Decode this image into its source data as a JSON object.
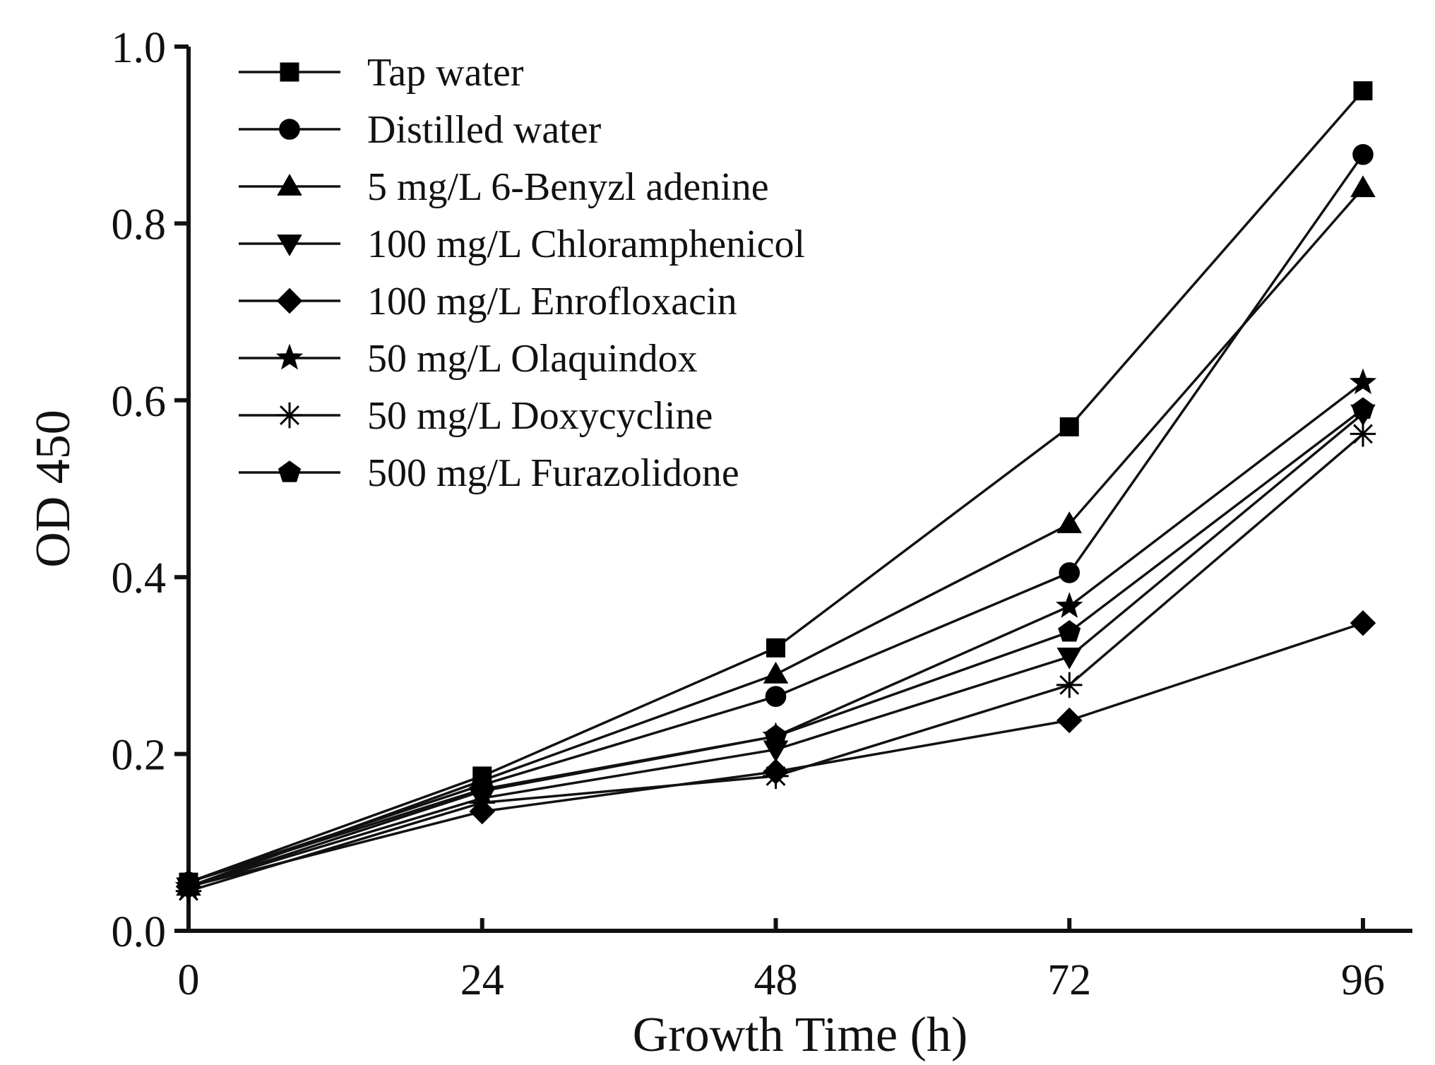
{
  "chart_data": {
    "type": "line",
    "title": "",
    "xlabel": "Growth Time (h)",
    "ylabel": "OD 450",
    "x": [
      0,
      24,
      48,
      72,
      96
    ],
    "xticks": [
      "0",
      "24",
      "48",
      "72",
      "96"
    ],
    "yticks": [
      "0.0",
      "0.2",
      "0.4",
      "0.6",
      "0.8",
      "1.0"
    ],
    "xlim": [
      0,
      100
    ],
    "ylim": [
      0,
      1.0
    ],
    "grid": false,
    "legend_position": "top-left",
    "series": [
      {
        "name": "Tap water",
        "marker": "square",
        "values": [
          0.055,
          0.175,
          0.32,
          0.57,
          0.95
        ]
      },
      {
        "name": "Distilled water",
        "marker": "circle",
        "values": [
          0.055,
          0.165,
          0.265,
          0.405,
          0.878
        ]
      },
      {
        "name": "5 mg/L 6-Benyzl adenine",
        "marker": "triangle-up",
        "values": [
          0.05,
          0.17,
          0.29,
          0.46,
          0.84
        ]
      },
      {
        "name": "100 mg/L Chloramphenicol",
        "marker": "triangle-down",
        "values": [
          0.05,
          0.15,
          0.205,
          0.31,
          0.585
        ]
      },
      {
        "name": "100 mg/L Enrofloxacin",
        "marker": "diamond",
        "values": [
          0.05,
          0.135,
          0.18,
          0.238,
          0.348
        ]
      },
      {
        "name": "50 mg/L Olaquindox",
        "marker": "star",
        "values": [
          0.05,
          0.158,
          0.22,
          0.367,
          0.62
        ]
      },
      {
        "name": "50 mg/L Doxycycline",
        "marker": "asterisk",
        "values": [
          0.045,
          0.145,
          0.175,
          0.278,
          0.562
        ]
      },
      {
        "name": "500 mg/L Furazolidone",
        "marker": "pentagon",
        "values": [
          0.055,
          0.16,
          0.22,
          0.338,
          0.59
        ]
      }
    ]
  }
}
